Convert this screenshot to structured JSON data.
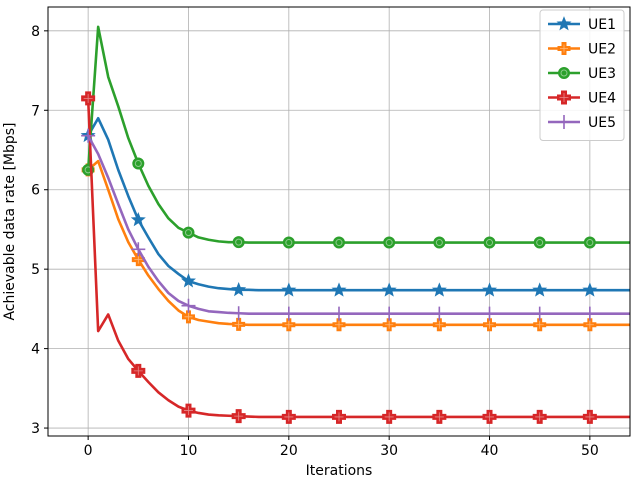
{
  "chart_data": {
    "type": "line",
    "xlabel": "Iterations",
    "ylabel": "Achievable data rate [Mbps]",
    "xlim": [
      -4,
      54
    ],
    "ylim": [
      2.9,
      8.3
    ],
    "xticks": [
      0,
      10,
      20,
      30,
      40,
      50
    ],
    "yticks": [
      3,
      4,
      5,
      6,
      7,
      8
    ],
    "grid": true,
    "legend": "top-right",
    "x": [
      0,
      1,
      2,
      3,
      4,
      5,
      6,
      7,
      8,
      9,
      10,
      11,
      12,
      13,
      14,
      15,
      16,
      17,
      18,
      19,
      20,
      21,
      22,
      23,
      24,
      25,
      26,
      27,
      28,
      29,
      30,
      31,
      32,
      33,
      34,
      35,
      36,
      37,
      38,
      39,
      40,
      41,
      42,
      43,
      44,
      45,
      46,
      47,
      48,
      49,
      50,
      51,
      52,
      53,
      54
    ],
    "series": [
      {
        "name": "UE1",
        "color": "#1f77b4",
        "marker": "star",
        "values": [
          6.68,
          6.9,
          6.63,
          6.25,
          5.92,
          5.62,
          5.4,
          5.19,
          5.04,
          4.94,
          4.85,
          4.81,
          4.78,
          4.76,
          4.75,
          4.74,
          4.74,
          4.735,
          4.735,
          4.735,
          4.735,
          4.735,
          4.735,
          4.735,
          4.735,
          4.735,
          4.735,
          4.735,
          4.735,
          4.735,
          4.735,
          4.735,
          4.735,
          4.735,
          4.735,
          4.735,
          4.735,
          4.735,
          4.735,
          4.735,
          4.735,
          4.735,
          4.735,
          4.735,
          4.735,
          4.735,
          4.735,
          4.735,
          4.735,
          4.735,
          4.735,
          4.735,
          4.735,
          4.735,
          4.735
        ]
      },
      {
        "name": "UE2",
        "color": "#ff7f0e",
        "marker": "plus",
        "values": [
          6.25,
          6.36,
          6.0,
          5.63,
          5.34,
          5.12,
          4.92,
          4.75,
          4.6,
          4.48,
          4.4,
          4.36,
          4.34,
          4.32,
          4.31,
          4.305,
          4.3,
          4.3,
          4.3,
          4.3,
          4.3,
          4.3,
          4.3,
          4.3,
          4.3,
          4.3,
          4.3,
          4.3,
          4.3,
          4.3,
          4.3,
          4.3,
          4.3,
          4.3,
          4.3,
          4.3,
          4.3,
          4.3,
          4.3,
          4.3,
          4.3,
          4.3,
          4.3,
          4.3,
          4.3,
          4.3,
          4.3,
          4.3,
          4.3,
          4.3,
          4.3,
          4.3,
          4.3,
          4.3,
          4.3
        ]
      },
      {
        "name": "UE3",
        "color": "#2ca02c",
        "marker": "circle",
        "values": [
          6.25,
          8.05,
          7.42,
          7.05,
          6.65,
          6.33,
          6.05,
          5.82,
          5.64,
          5.52,
          5.46,
          5.4,
          5.37,
          5.35,
          5.34,
          5.34,
          5.335,
          5.335,
          5.335,
          5.335,
          5.335,
          5.335,
          5.335,
          5.335,
          5.335,
          5.335,
          5.335,
          5.335,
          5.335,
          5.335,
          5.335,
          5.335,
          5.335,
          5.335,
          5.335,
          5.335,
          5.335,
          5.335,
          5.335,
          5.335,
          5.335,
          5.335,
          5.335,
          5.335,
          5.335,
          5.335,
          5.335,
          5.335,
          5.335,
          5.335,
          5.335,
          5.335,
          5.335,
          5.335,
          5.335
        ]
      },
      {
        "name": "UE4",
        "color": "#d62728",
        "marker": "cross",
        "values": [
          7.15,
          4.22,
          4.43,
          4.1,
          3.87,
          3.72,
          3.58,
          3.45,
          3.35,
          3.27,
          3.22,
          3.19,
          3.17,
          3.16,
          3.155,
          3.15,
          3.145,
          3.14,
          3.14,
          3.14,
          3.14,
          3.14,
          3.14,
          3.14,
          3.14,
          3.14,
          3.14,
          3.14,
          3.14,
          3.14,
          3.14,
          3.14,
          3.14,
          3.14,
          3.14,
          3.14,
          3.14,
          3.14,
          3.14,
          3.14,
          3.14,
          3.14,
          3.14,
          3.14,
          3.14,
          3.14,
          3.14,
          3.14,
          3.14,
          3.14,
          3.14,
          3.14,
          3.14,
          3.14,
          3.14
        ]
      },
      {
        "name": "UE5",
        "color": "#9467bd",
        "marker": "thin-plus",
        "values": [
          6.68,
          6.45,
          6.15,
          5.82,
          5.5,
          5.25,
          5.03,
          4.85,
          4.7,
          4.6,
          4.54,
          4.5,
          4.47,
          4.46,
          4.45,
          4.445,
          4.44,
          4.44,
          4.44,
          4.44,
          4.44,
          4.44,
          4.44,
          4.44,
          4.44,
          4.44,
          4.44,
          4.44,
          4.44,
          4.44,
          4.44,
          4.44,
          4.44,
          4.44,
          4.44,
          4.44,
          4.44,
          4.44,
          4.44,
          4.44,
          4.44,
          4.44,
          4.44,
          4.44,
          4.44,
          4.44,
          4.44,
          4.44,
          4.44,
          4.44,
          4.44,
          4.44,
          4.44,
          4.44,
          4.44
        ]
      }
    ],
    "marker_every": 5
  }
}
